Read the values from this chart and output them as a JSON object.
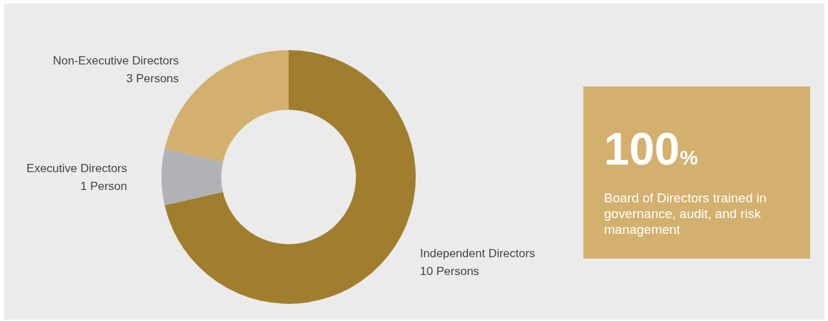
{
  "chart_data": [
    {
      "type": "donut",
      "categories": [
        "Independent Directors",
        "Executive Directors",
        "Non-Executive Directors"
      ],
      "values": [
        10,
        1,
        3
      ],
      "colors": [
        "#a07e2e",
        "#b0b2b5",
        "#d3b06e"
      ],
      "value_labels": [
        "10 Persons",
        "1 Person",
        "3 Persons"
      ],
      "legend": false
    },
    {
      "type": "other",
      "title": "100%",
      "subtitle": "Board of Directors trained in governance, audit, and risk management"
    }
  ]
}
